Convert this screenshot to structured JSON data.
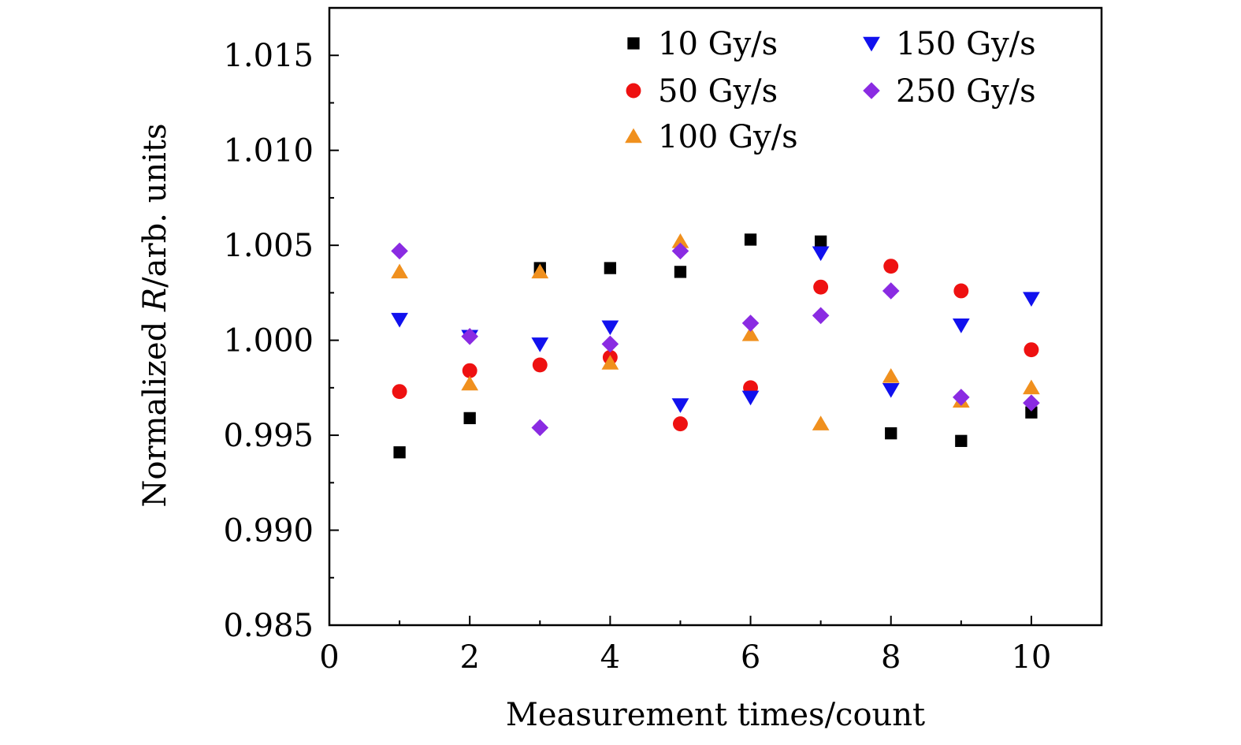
{
  "chart_data": {
    "type": "scatter",
    "xlabel": "Measurement times/count",
    "ylabel": "Normalized R/arb. units",
    "ylabel_parts": {
      "prefix": "Normalized ",
      "var": "R",
      "suffix": "/arb. units"
    },
    "xlim": [
      0,
      11
    ],
    "ylim": [
      0.985,
      1.0175
    ],
    "xticks": [
      0,
      2,
      4,
      6,
      8,
      10
    ],
    "xtick_labels": [
      "0",
      "2",
      "4",
      "6",
      "8",
      "10"
    ],
    "yticks": [
      0.985,
      0.99,
      0.995,
      1.0,
      1.005,
      1.01,
      1.015
    ],
    "ytick_labels": [
      "0.985",
      "0.990",
      "0.995",
      "1.000",
      "1.005",
      "1.010",
      "1.015"
    ],
    "grid": false,
    "legend_position": "top-right",
    "series": [
      {
        "name": "10 Gy/s",
        "marker": "square",
        "color": "#000000",
        "x": [
          1,
          2,
          3,
          4,
          5,
          6,
          7,
          8,
          9,
          10
        ],
        "y": [
          0.9941,
          0.9959,
          1.0038,
          1.0038,
          1.0036,
          1.0053,
          1.0052,
          0.9951,
          0.9947,
          0.9962
        ]
      },
      {
        "name": "50 Gy/s",
        "marker": "circle",
        "color": "#ee1111",
        "x": [
          1,
          2,
          3,
          4,
          5,
          6,
          7,
          8,
          9,
          10
        ],
        "y": [
          0.9973,
          0.9984,
          0.9987,
          0.9991,
          0.9956,
          0.9975,
          1.0028,
          1.0039,
          1.0026,
          0.9995
        ]
      },
      {
        "name": "100 Gy/s",
        "marker": "triangle-up",
        "color": "#f0901e",
        "x": [
          1,
          2,
          3,
          4,
          5,
          6,
          7,
          8,
          9,
          10
        ],
        "y": [
          1.0036,
          0.9977,
          1.0036,
          0.9988,
          1.0052,
          1.0003,
          0.9956,
          0.9981,
          0.9968,
          0.9975
        ]
      },
      {
        "name": "150 Gy/s",
        "marker": "triangle-down",
        "color": "#1111ee",
        "x": [
          1,
          2,
          3,
          4,
          5,
          6,
          7,
          8,
          9,
          10
        ],
        "y": [
          1.0011,
          1.0002,
          0.9998,
          1.0007,
          0.9966,
          0.997,
          1.0046,
          0.9974,
          1.0008,
          1.0022
        ]
      },
      {
        "name": "250 Gy/s",
        "marker": "diamond",
        "color": "#8a2be2",
        "x": [
          1,
          2,
          3,
          4,
          5,
          6,
          7,
          8,
          9,
          10
        ],
        "y": [
          1.0047,
          1.0002,
          0.9954,
          0.9998,
          1.0047,
          1.0009,
          1.0013,
          1.0026,
          0.997,
          0.9967
        ]
      }
    ]
  }
}
